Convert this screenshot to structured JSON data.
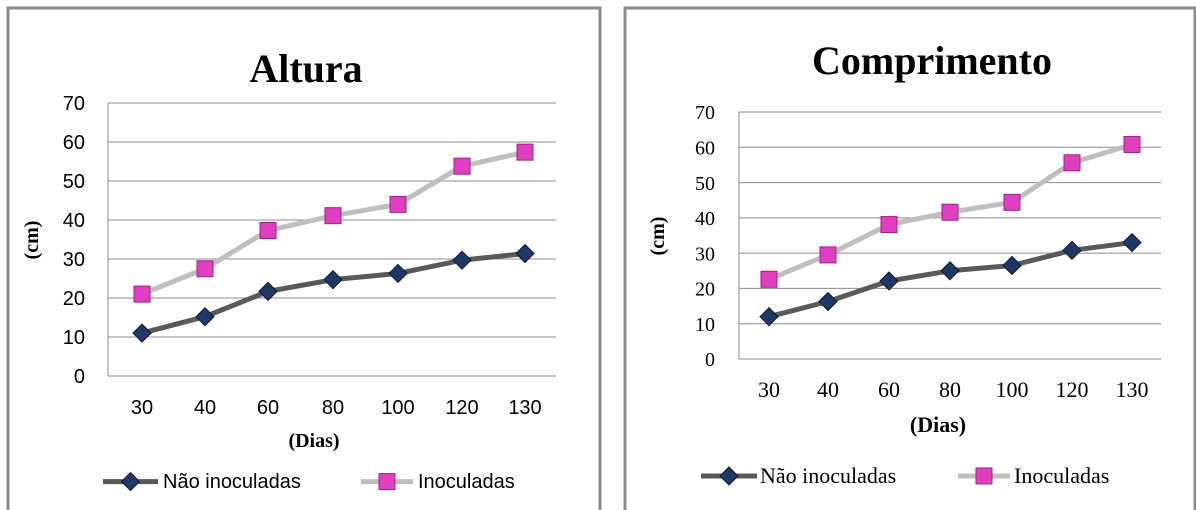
{
  "chart_data": [
    {
      "type": "line",
      "title": "Altura",
      "xlabel": "(Dias)",
      "ylabel": "(cm)",
      "categories": [
        "30",
        "40",
        "60",
        "80",
        "100",
        "120",
        "130"
      ],
      "ylim": [
        0,
        70
      ],
      "yticks": [
        "0",
        "10",
        "20",
        "30",
        "40",
        "50",
        "60",
        "70"
      ],
      "grid": true,
      "legend": "bottom",
      "series": [
        {
          "name": "Não inoculadas",
          "values": [
            11,
            15.2,
            21.7,
            24.7,
            26.3,
            29.7,
            31.4
          ],
          "color": "#595959",
          "marker": "diamond",
          "marker_color": "#1f3864"
        },
        {
          "name": "Inoculadas",
          "values": [
            21,
            27.5,
            37.3,
            41.1,
            44,
            53.8,
            57.4
          ],
          "color": "#bfbfbf",
          "marker": "square",
          "marker_color": "#e040c0"
        }
      ]
    },
    {
      "type": "line",
      "title": "Comprimento",
      "xlabel": "(Dias)",
      "ylabel": "(cm)",
      "categories": [
        "30",
        "40",
        "60",
        "80",
        "100",
        "120",
        "130"
      ],
      "ylim": [
        0,
        70
      ],
      "yticks": [
        "0",
        "10",
        "20",
        "30",
        "40",
        "50",
        "60",
        "70"
      ],
      "grid": true,
      "legend": "bottom",
      "series": [
        {
          "name": "Não inoculadas",
          "values": [
            12,
            16.3,
            22.1,
            25,
            26.5,
            30.8,
            33
          ],
          "color": "#595959",
          "marker": "diamond",
          "marker_color": "#1f3864"
        },
        {
          "name": "Inoculadas",
          "values": [
            22.6,
            29.5,
            38.1,
            41.6,
            44.4,
            55.6,
            60.8
          ],
          "color": "#bfbfbf",
          "marker": "square",
          "marker_color": "#e040c0"
        }
      ]
    }
  ]
}
